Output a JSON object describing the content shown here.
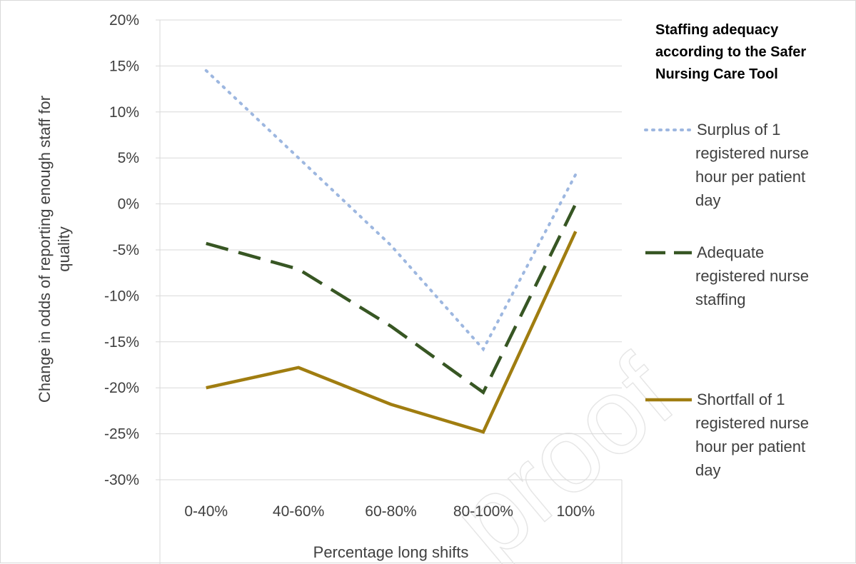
{
  "chart_data": {
    "type": "line",
    "categories": [
      "0-40%",
      "40-60%",
      "60-80%",
      "80-100%",
      "100%"
    ],
    "series": [
      {
        "name": "Surplus of 1 registered nurse hour per patient day",
        "values": [
          14.5,
          5.0,
          -4.5,
          -15.8,
          3.2
        ],
        "color": "#9db7e0",
        "dash": "dotted"
      },
      {
        "name": "Adequate registered nurse staffing",
        "values": [
          -4.3,
          -7.1,
          -13.3,
          -20.5,
          0.0
        ],
        "color": "#375623",
        "dash": "long-dash"
      },
      {
        "name": "Shortfall of 1 registered nurse hour per patient day",
        "values": [
          -20.0,
          -17.8,
          -21.8,
          -24.8,
          -3.0
        ],
        "color": "#a07d10",
        "dash": "solid"
      }
    ],
    "yticks": [
      "20%",
      "15%",
      "10%",
      "5%",
      "0%",
      "-5%",
      "-10%",
      "-15%",
      "-20%",
      "-25%",
      "-30%"
    ],
    "ylim": [
      -30,
      20
    ],
    "xlabel": "Percentage long shifts",
    "ylabel": "Change in odds of reporting enough staff for quality",
    "grid": true,
    "legend": {
      "title_lines": [
        "Staffing adequacy",
        "according to the Safer",
        "Nursing Care Tool"
      ],
      "placement": "right",
      "entries": [
        {
          "lines": [
            "Surplus of 1",
            "registered nurse",
            "hour per patient",
            "day"
          ]
        },
        {
          "lines": [
            "Adequate",
            "registered nurse",
            "staffing"
          ]
        },
        {
          "lines": [
            "Shortfall of 1",
            "registered nurse",
            "hour per patient",
            "day"
          ]
        }
      ]
    }
  },
  "watermark": "proof"
}
